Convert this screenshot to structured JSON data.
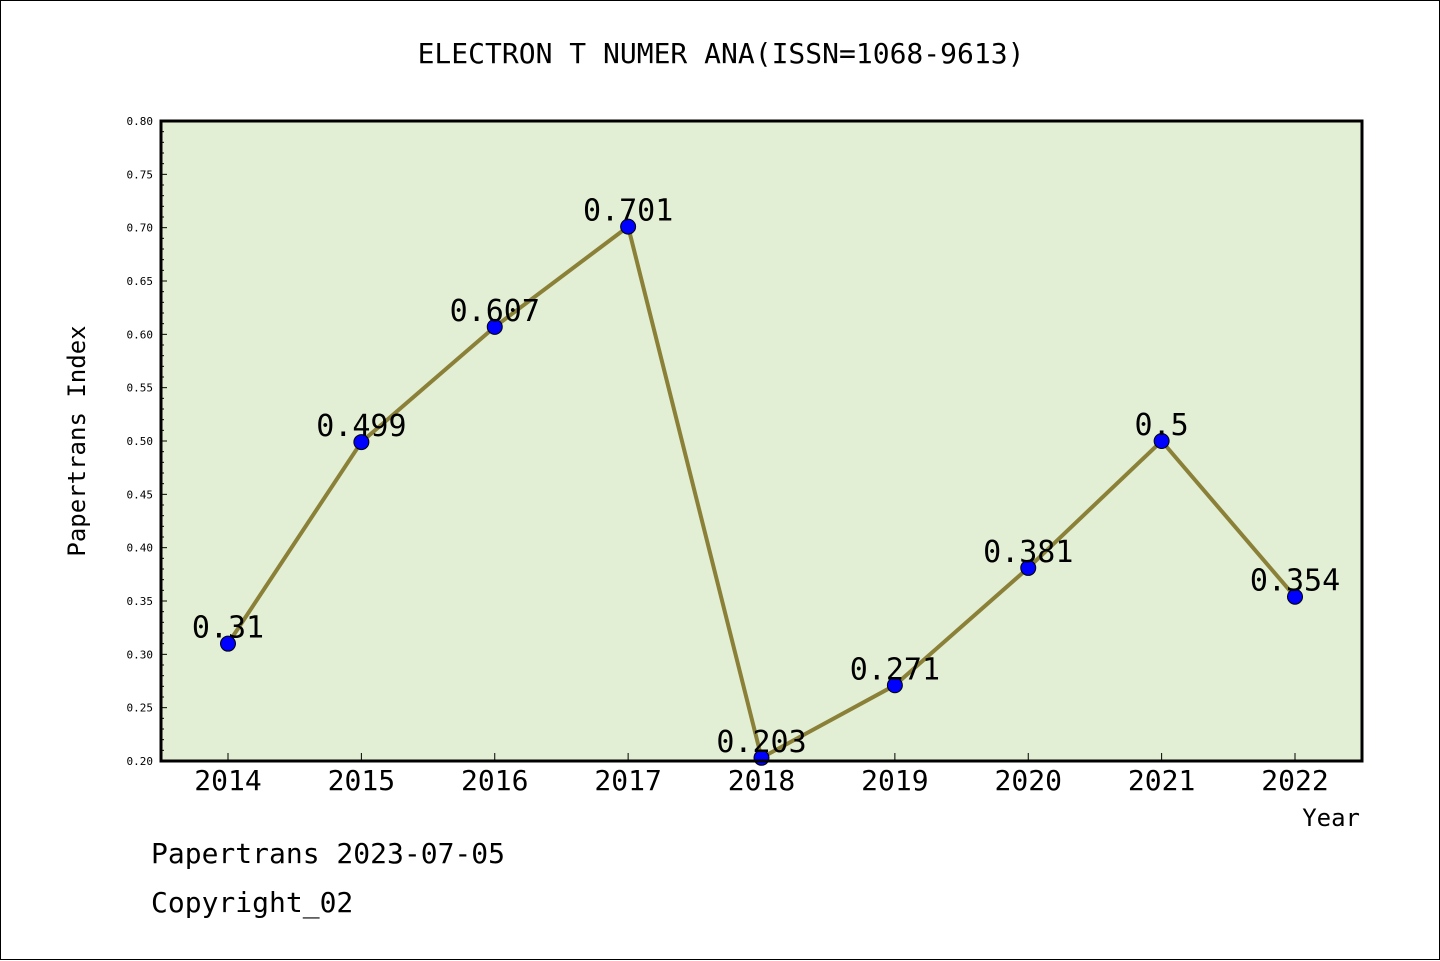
{
  "footer": {
    "line1": "Papertrans 2023-07-05",
    "line2": "Copyright_02"
  },
  "chart_data": {
    "type": "line",
    "title": "ELECTRON T NUMER ANA(ISSN=1068-9613)",
    "xlabel": "Year",
    "ylabel": "Papertrans Index",
    "categories": [
      "2014",
      "2015",
      "2016",
      "2017",
      "2018",
      "2019",
      "2020",
      "2021",
      "2022"
    ],
    "series": [
      {
        "values": [
          0.31,
          0.499,
          0.607,
          0.701,
          0.203,
          0.271,
          0.381,
          0.5,
          0.354
        ],
        "labels": [
          "0.31",
          "0.499",
          "0.607",
          "0.701",
          "0.203",
          "0.271",
          "0.381",
          "0.5",
          "0.354"
        ],
        "line_color": "#8b8038",
        "marker_color": "#0000ff"
      }
    ],
    "ylim": [
      0.2,
      0.8
    ],
    "yticks": [
      "0.20",
      "0.25",
      "0.30",
      "0.35",
      "0.40",
      "0.45",
      "0.50",
      "0.55",
      "0.60",
      "0.65",
      "0.70",
      "0.75",
      "0.80"
    ],
    "plot_background": "#e2efd4",
    "grid": false,
    "legend": "none"
  }
}
